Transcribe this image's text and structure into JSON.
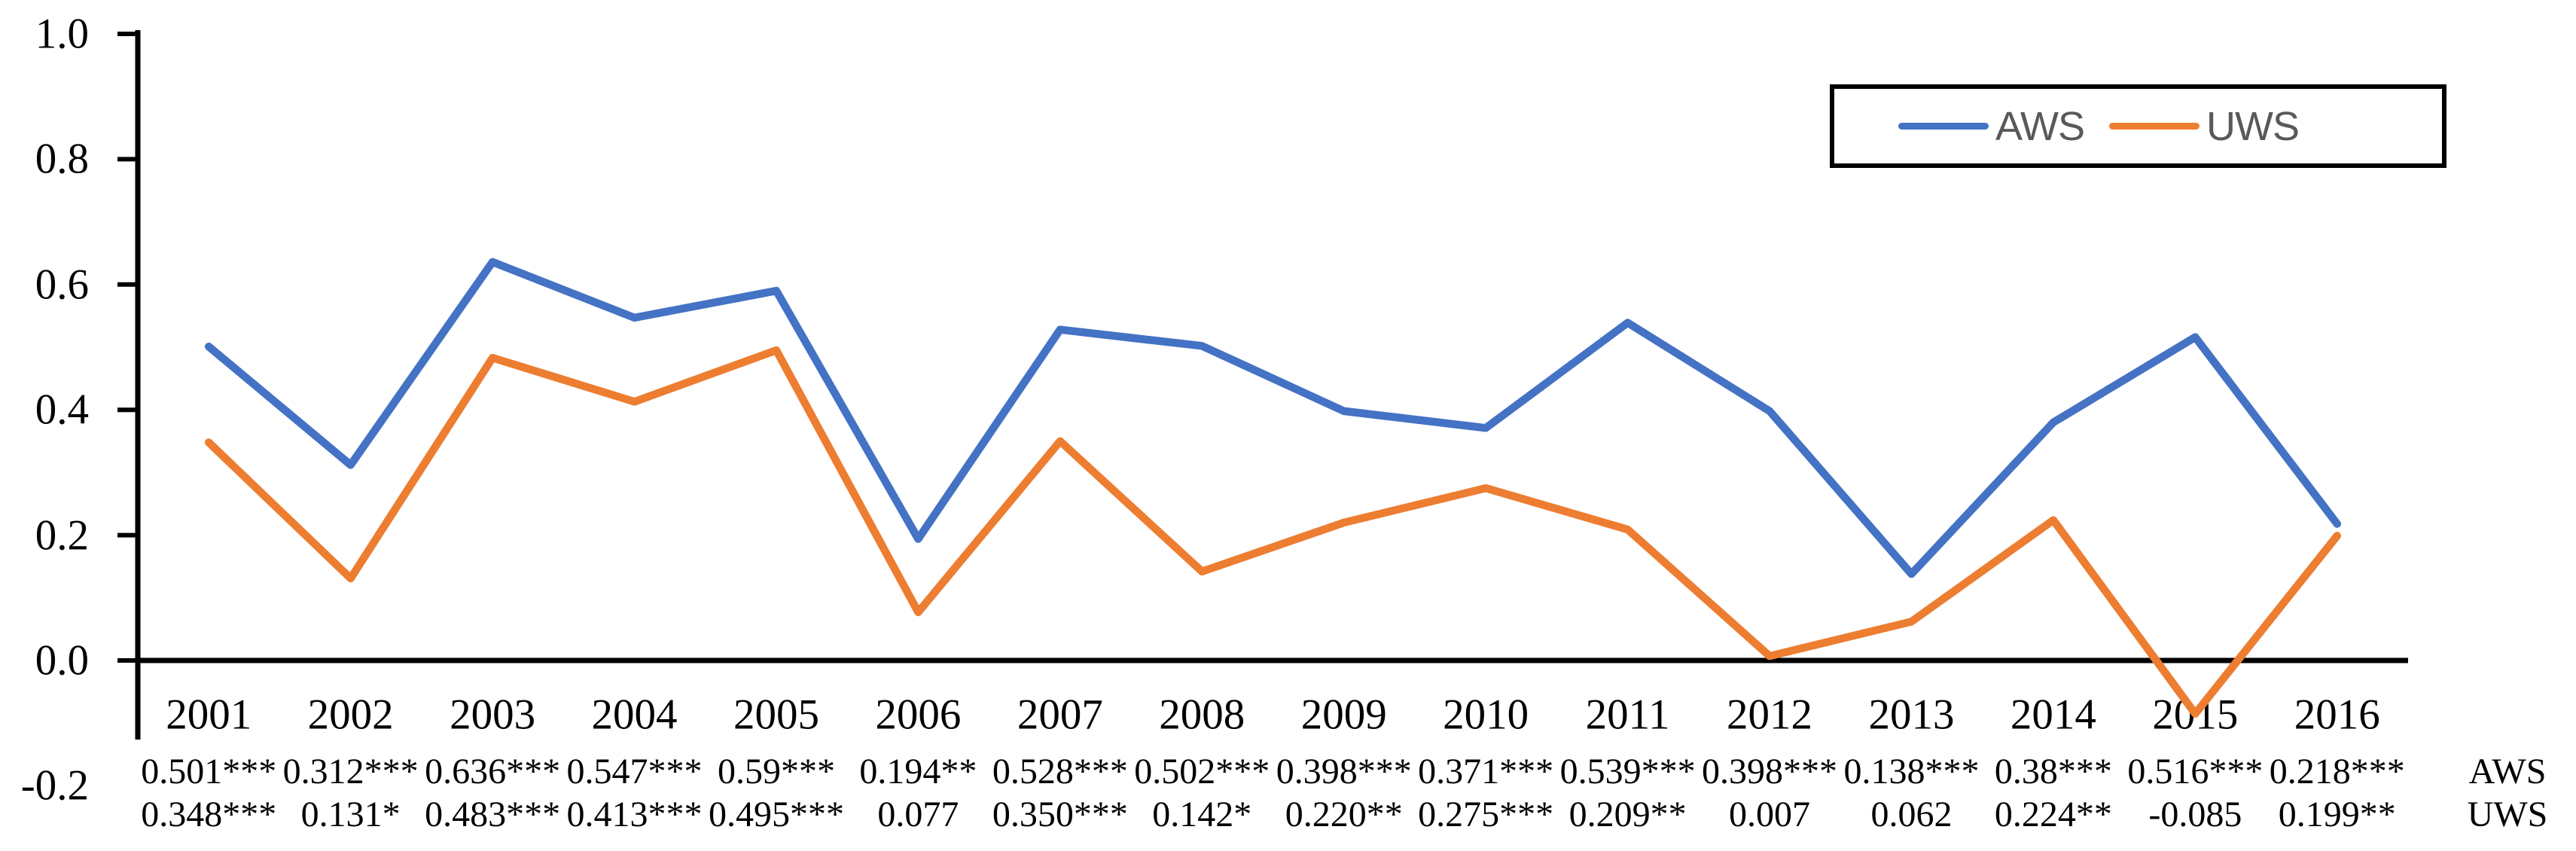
{
  "chart_data": {
    "type": "line",
    "title": "",
    "xlabel": "",
    "ylabel": "",
    "grid": "off",
    "ylim": [
      -0.2,
      1.0
    ],
    "y_ticks": [
      {
        "label": "1.0",
        "value": 1.0
      },
      {
        "label": "0.8",
        "value": 0.8
      },
      {
        "label": "0.6",
        "value": 0.6
      },
      {
        "label": "0.4",
        "value": 0.4
      },
      {
        "label": "0.2",
        "value": 0.2
      },
      {
        "label": "0.0",
        "value": 0.0
      },
      {
        "label": "-0.2",
        "value": -0.2
      }
    ],
    "categories": [
      "2001",
      "2002",
      "2003",
      "2004",
      "2005",
      "2006",
      "2007",
      "2008",
      "2009",
      "2010",
      "2011",
      "2012",
      "2013",
      "2014",
      "2015",
      "2016"
    ],
    "series": [
      {
        "name": "AWS",
        "color": "#4472C4",
        "values": [
          0.501,
          0.312,
          0.636,
          0.547,
          0.59,
          0.194,
          0.528,
          0.502,
          0.398,
          0.371,
          0.539,
          0.398,
          0.138,
          0.38,
          0.516,
          0.218
        ],
        "value_labels": [
          "0.501***",
          "0.312***",
          "0.636***",
          "0.547***",
          "0.59***",
          "0.194**",
          "0.528***",
          "0.502***",
          "0.398***",
          "0.371***",
          "0.539***",
          "0.398***",
          "0.138***",
          "0.38***",
          "0.516***",
          "0.218***"
        ]
      },
      {
        "name": "UWS",
        "color": "#ED7D31",
        "values": [
          0.348,
          0.131,
          0.483,
          0.413,
          0.495,
          0.077,
          0.35,
          0.142,
          0.22,
          0.275,
          0.209,
          0.007,
          0.062,
          0.224,
          -0.085,
          0.199
        ],
        "value_labels": [
          "0.348***",
          "0.131*",
          "0.483***",
          "0.413***",
          "0.495***",
          "0.077",
          "0.350***",
          "0.142*",
          "0.220**",
          "0.275***",
          "0.209**",
          "0.007",
          "0.062",
          "0.224**",
          "-0.085",
          "0.199**"
        ]
      }
    ],
    "row_labels": [
      "AWS",
      "UWS"
    ],
    "legend": {
      "position": "top-right",
      "entries": [
        "AWS",
        "UWS"
      ]
    },
    "axis_color": "#000000"
  }
}
